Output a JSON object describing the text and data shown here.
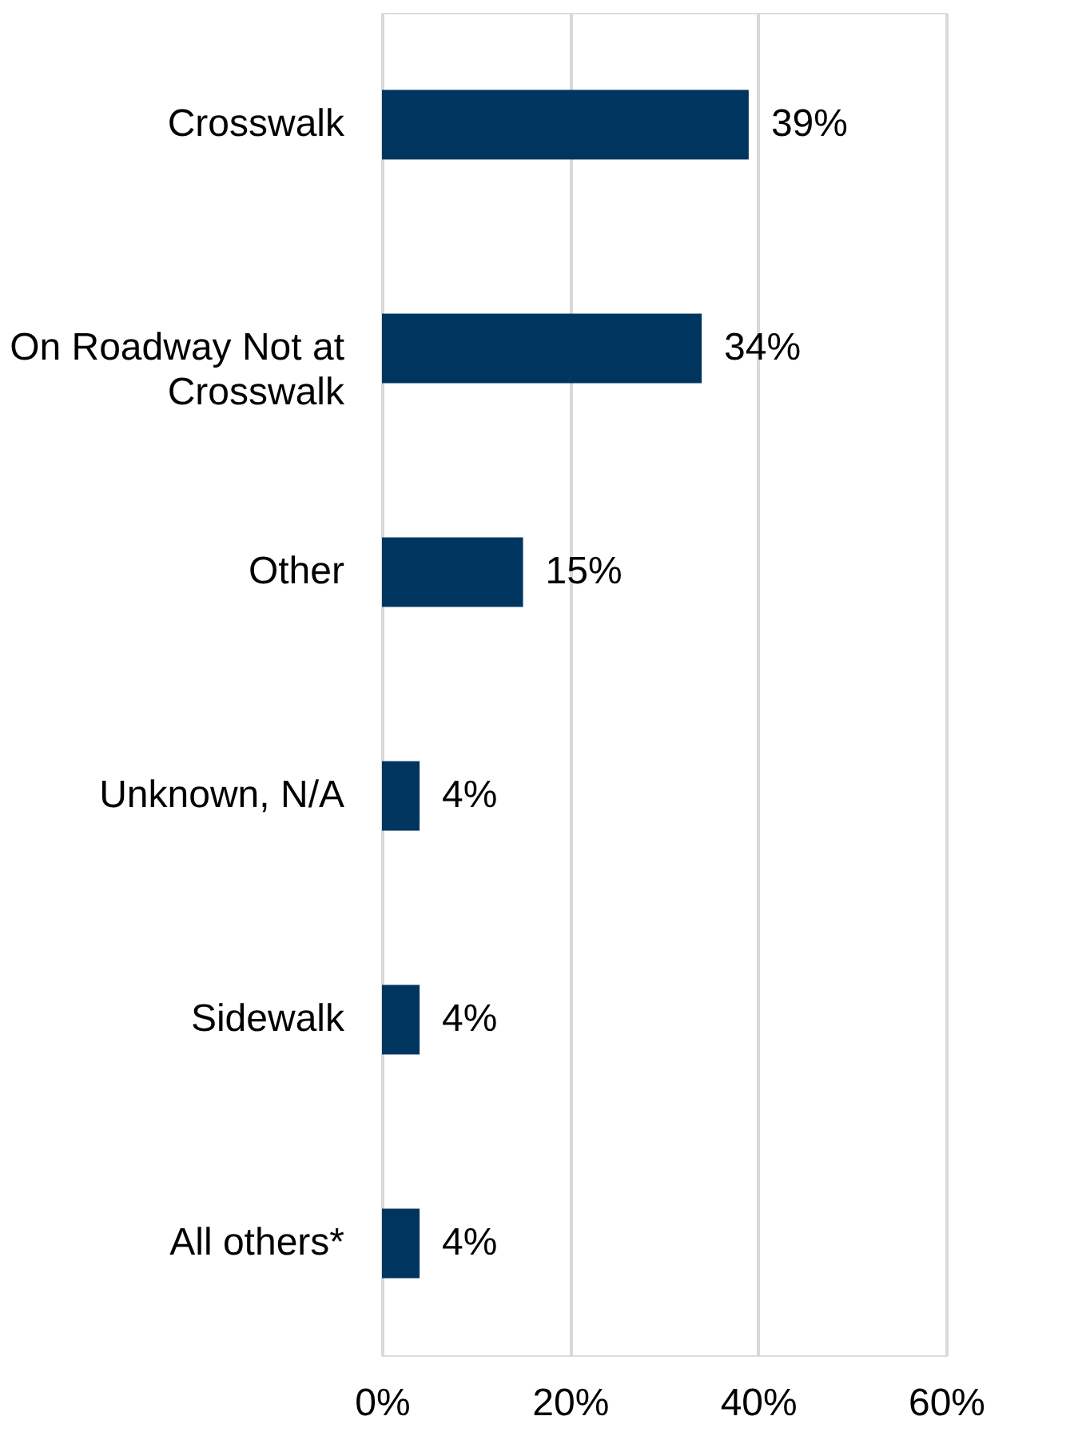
{
  "chart_data": {
    "type": "bar",
    "orientation": "horizontal",
    "categories": [
      "Crosswalk",
      "On Roadway Not at Crosswalk",
      "Other",
      "Unknown, N/A",
      "Sidewalk",
      "All others*"
    ],
    "values": [
      39,
      34,
      15,
      4,
      4,
      4
    ],
    "value_labels": [
      "39%",
      "34%",
      "15%",
      "4%",
      "4%",
      "4%"
    ],
    "color": "#003560",
    "xlim": [
      0,
      60
    ],
    "xticks": [
      {
        "value": 0,
        "label": "0%"
      },
      {
        "value": 20,
        "label": "20%"
      },
      {
        "value": 40,
        "label": "40%"
      },
      {
        "value": 60,
        "label": "60%"
      }
    ],
    "grid": "x"
  }
}
